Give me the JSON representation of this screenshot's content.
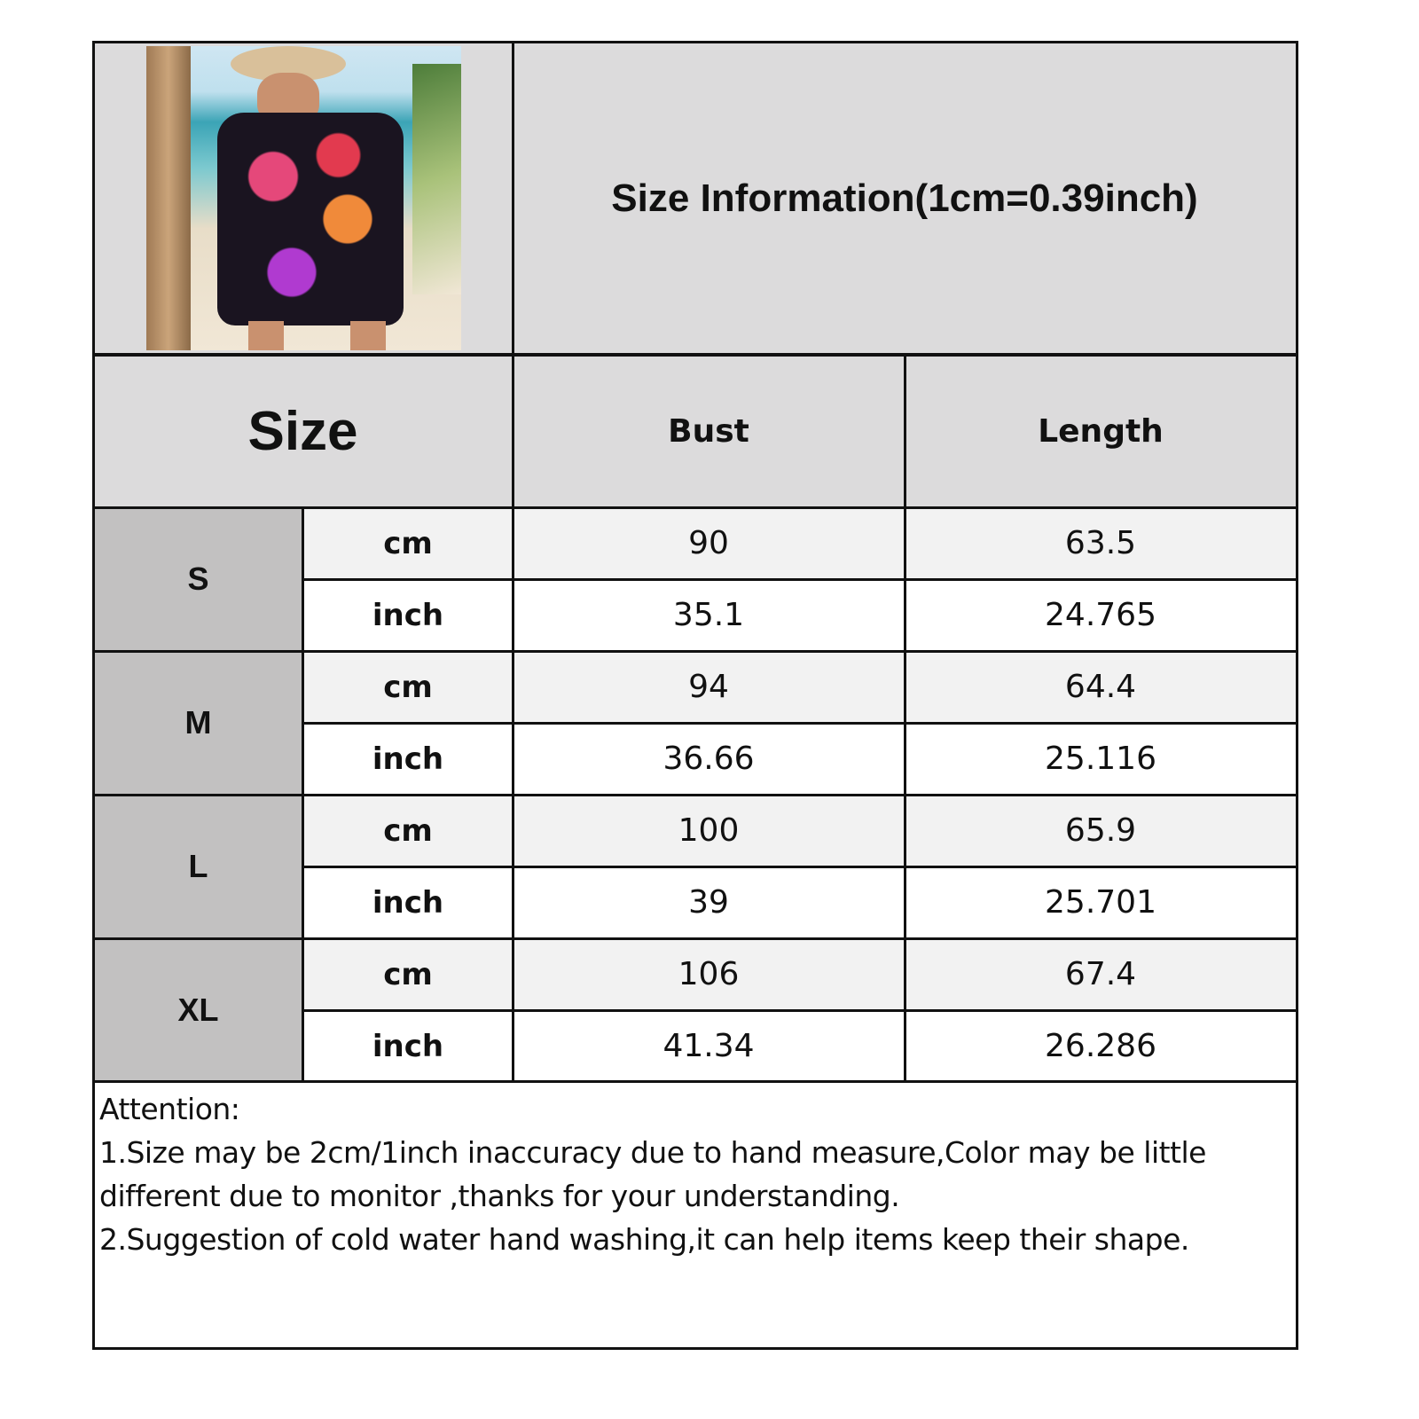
{
  "title": "Size Information(1cm=0.39inch)",
  "headers": {
    "size": "Size",
    "bust": "Bust",
    "length": "Length"
  },
  "rows": [
    {
      "size": "S",
      "cm": {
        "unit": "cm",
        "bust": "90",
        "length": "63.5"
      },
      "inch": {
        "unit": "inch",
        "bust": "35.1",
        "length": "24.765"
      }
    },
    {
      "size": "M",
      "cm": {
        "unit": "cm",
        "bust": "94",
        "length": "64.4"
      },
      "inch": {
        "unit": "inch",
        "bust": "36.66",
        "length": "25.116"
      }
    },
    {
      "size": "L",
      "cm": {
        "unit": "cm",
        "bust": "100",
        "length": "65.9"
      },
      "inch": {
        "unit": "inch",
        "bust": "39",
        "length": "25.701"
      }
    },
    {
      "size": "XL",
      "cm": {
        "unit": "cm",
        "bust": "106",
        "length": "67.4"
      },
      "inch": {
        "unit": "inch",
        "bust": "41.34",
        "length": "26.286"
      }
    }
  ],
  "notes": {
    "heading": "Attention:",
    "line1": "1.Size may be 2cm/1inch inaccuracy due to hand measure,Color may be little different due to monitor ,thanks for your understanding.",
    "line2": "2.Suggestion of cold water hand washing,it can help items keep their shape."
  }
}
